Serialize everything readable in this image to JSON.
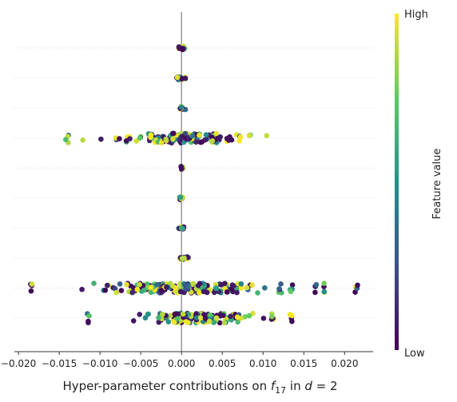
{
  "chart_data": {
    "type": "scatter",
    "subtype": "beeswarm",
    "title": "",
    "xlabel_prefix": "Hyper-parameter contributions on ",
    "xlabel_symbol": "f",
    "xlabel_subscript": "17",
    "xlabel_mid": " in ",
    "xlabel_var": "d",
    "xlabel_suffix": " = 2",
    "ylabel": "",
    "xlim": [
      -0.0205,
      0.0235
    ],
    "xticks": [
      -0.02,
      -0.015,
      -0.01,
      -0.005,
      0.0,
      0.005,
      0.01,
      0.015,
      0.02
    ],
    "xtick_labels": [
      "−0.020",
      "−0.015",
      "−0.010",
      "−0.005",
      "0.000",
      "0.005",
      "0.010",
      "0.015",
      "0.020"
    ],
    "grid": false,
    "colorbar": {
      "label": "Feature value",
      "high": "High",
      "low": "Low",
      "colormap": "viridis"
    },
    "rows": [
      {
        "center": 0.0,
        "spread": 0.0004,
        "count": 18
      },
      {
        "center": 0.0,
        "spread": 0.0006,
        "count": 20
      },
      {
        "center": 0.0,
        "spread": 0.0003,
        "count": 12
      },
      {
        "center": 0.0,
        "spread": 0.006,
        "count": 140,
        "outliers": [
          -0.014
        ]
      },
      {
        "center": 0.0,
        "spread": 0.0002,
        "count": 10
      },
      {
        "center": 0.0,
        "spread": 0.0002,
        "count": 12
      },
      {
        "center": 0.0,
        "spread": 0.0003,
        "count": 10
      },
      {
        "center": 0.0,
        "spread": 0.0006,
        "count": 16
      },
      {
        "center": 0.0,
        "spread": 0.008,
        "count": 200,
        "outliers": [
          -0.0185,
          0.012,
          0.0135,
          0.0165,
          0.0175,
          0.0215
        ]
      },
      {
        "center": 0.0015,
        "spread": 0.0055,
        "count": 150,
        "outliers": [
          -0.0115,
          0.011,
          0.0135
        ]
      }
    ]
  }
}
